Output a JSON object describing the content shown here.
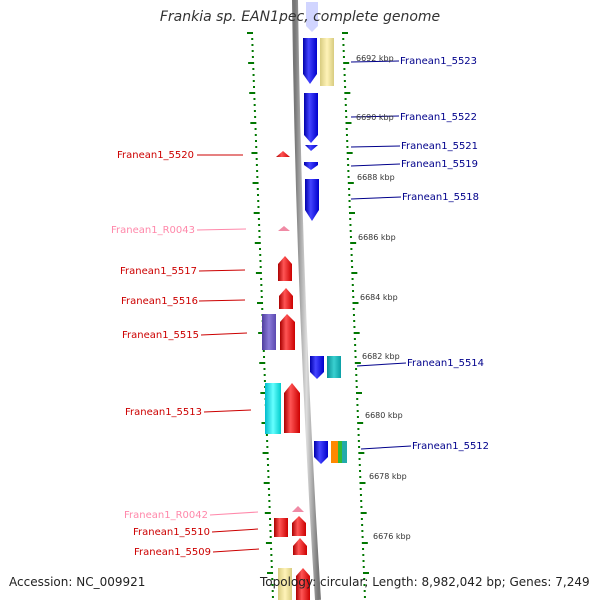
{
  "title": "Frankia sp. EAN1pec, complete genome",
  "accession": "Accession: NC_009921",
  "topology": "Topology: circular; Length: 8,982,042 bp; Genes: 7,249",
  "colors": {
    "forward": "#ff0000",
    "reverse": "#0000ff",
    "rna_label": "#ff88aa",
    "forward_label": "#cc0000",
    "reverse_label": "#00008b",
    "ticks": "#007700",
    "backbone": "#999999"
  },
  "scale_labels": [
    "6692 kbp",
    "6690 kbp",
    "6688 kbp",
    "6686 kbp",
    "6684 kbp",
    "6682 kbp",
    "6680 kbp",
    "6678 kbp",
    "6676 kbp"
  ],
  "left_labels": [
    "Franean1_5520",
    "Franean1_R0043",
    "Franean1_5517",
    "Franean1_5516",
    "Franean1_5515",
    "Franean1_5513",
    "Franean1_R0042",
    "Franean1_5510",
    "Franean1_5509"
  ],
  "right_labels": [
    "Franean1_5523",
    "Franean1_5522",
    "Franean1_5521",
    "Franean1_5519",
    "Franean1_5518",
    "Franean1_5514",
    "Franean1_5512"
  ]
}
